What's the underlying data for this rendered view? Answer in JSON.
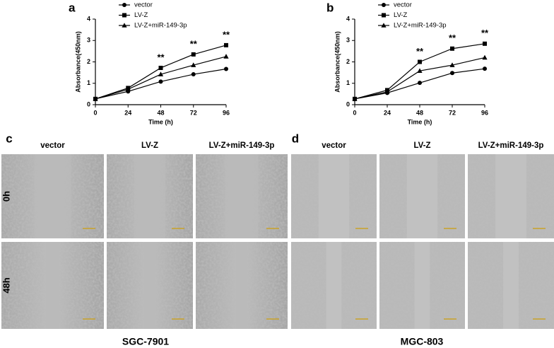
{
  "chart_data": [
    {
      "type": "line",
      "panel": "a",
      "xlabel": "Time (h)",
      "ylabel": "Absorbance(450nm)",
      "x": [
        0,
        24,
        48,
        72,
        96
      ],
      "xlim": [
        0,
        96
      ],
      "xticks": [
        0,
        24,
        48,
        72,
        96
      ],
      "ylim": [
        0,
        4
      ],
      "yticks": [
        0,
        1,
        2,
        3,
        4
      ],
      "legend": "top-left",
      "series": [
        {
          "name": "vector",
          "color": "#000000",
          "marker": "circle",
          "values": [
            0.27,
            0.62,
            1.08,
            1.42,
            1.67
          ]
        },
        {
          "name": "LV-Z",
          "color": "#000000",
          "marker": "square",
          "values": [
            0.27,
            0.78,
            1.72,
            2.35,
            2.78
          ]
        },
        {
          "name": "LV-Z+miR-149-3p",
          "color": "#000000",
          "marker": "triangle",
          "values": [
            0.27,
            0.72,
            1.42,
            1.85,
            2.25
          ]
        }
      ],
      "annotations": [
        {
          "text": "**",
          "x": 48
        },
        {
          "text": "**",
          "x": 72
        },
        {
          "text": "**",
          "x": 96
        }
      ]
    },
    {
      "type": "line",
      "panel": "b",
      "xlabel": "Time (h)",
      "ylabel": "Absorbance(450nm)",
      "x": [
        0,
        24,
        48,
        72,
        96
      ],
      "xlim": [
        0,
        96
      ],
      "xticks": [
        0,
        24,
        48,
        72,
        96
      ],
      "ylim": [
        0,
        4
      ],
      "yticks": [
        0,
        1,
        2,
        3,
        4
      ],
      "legend": "top-left",
      "series": [
        {
          "name": "vector",
          "color": "#000000",
          "marker": "circle",
          "values": [
            0.27,
            0.55,
            1.02,
            1.48,
            1.68
          ]
        },
        {
          "name": "LV-Z",
          "color": "#000000",
          "marker": "square",
          "values": [
            0.27,
            0.68,
            2.0,
            2.62,
            2.85
          ]
        },
        {
          "name": "LV-Z+miR-149-3p",
          "color": "#000000",
          "marker": "triangle",
          "values": [
            0.27,
            0.6,
            1.58,
            1.85,
            2.2
          ]
        }
      ],
      "annotations": [
        {
          "text": "**",
          "x": 48
        },
        {
          "text": "**",
          "x": 72
        },
        {
          "text": "**",
          "x": 96
        }
      ]
    }
  ],
  "micrographs": [
    {
      "panel": "c",
      "columns": [
        "vector",
        "LV-Z",
        "LV-Z+miR-149-3p"
      ],
      "rows": [
        "0h",
        "48h"
      ],
      "cell_line": "SGC-7901"
    },
    {
      "panel": "d",
      "columns": [
        "vector",
        "LV-Z",
        "LV-Z+miR-149-3p"
      ],
      "rows": [
        "0h",
        "48h"
      ],
      "cell_line": "MGC-803"
    }
  ]
}
